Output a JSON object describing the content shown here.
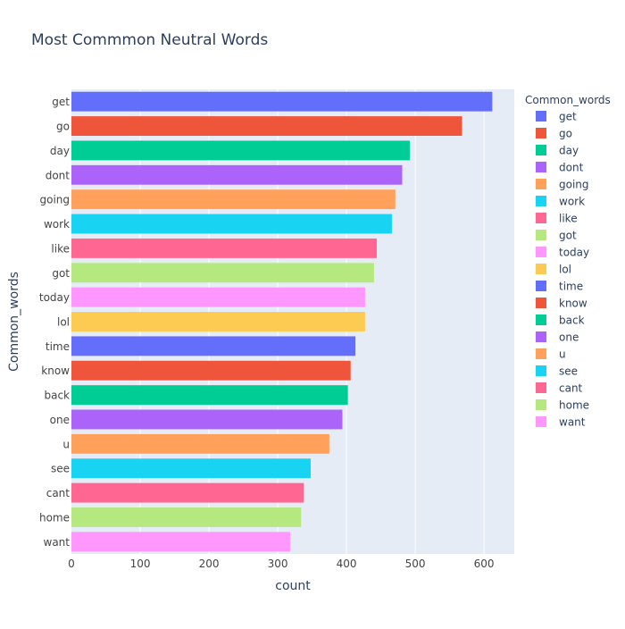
{
  "chart_data": {
    "type": "bar",
    "orientation": "horizontal",
    "title": "Most Commmon Neutral Words",
    "xlabel": "count",
    "ylabel": "Common_words",
    "legend_title": "Common_words",
    "legend_position": "right",
    "xlim": [
      0,
      644
    ],
    "xticks": [
      0,
      100,
      200,
      300,
      400,
      500,
      600
    ],
    "grid": true,
    "categories": [
      "get",
      "go",
      "day",
      "dont",
      "going",
      "work",
      "like",
      "got",
      "today",
      "lol",
      "time",
      "know",
      "back",
      "one",
      "u",
      "see",
      "cant",
      "home",
      "want"
    ],
    "values": [
      612,
      568,
      492,
      481,
      471,
      466,
      444,
      440,
      427,
      427,
      413,
      406,
      402,
      394,
      375,
      348,
      338,
      334,
      318
    ],
    "colors": [
      "#636efa",
      "#EF553B",
      "#00cc96",
      "#ab63fa",
      "#FFA15A",
      "#19d3f3",
      "#FF6692",
      "#B6E880",
      "#FF97FF",
      "#FECB52",
      "#636efa",
      "#EF553B",
      "#00cc96",
      "#ab63fa",
      "#FFA15A",
      "#19d3f3",
      "#FF6692",
      "#B6E880",
      "#FF97FF"
    ]
  },
  "theme": {
    "plot_bg": "#E5ECF6",
    "grid_color": "#ffffff",
    "text_color": "#2a3f5f",
    "tick_color": "#444444"
  }
}
